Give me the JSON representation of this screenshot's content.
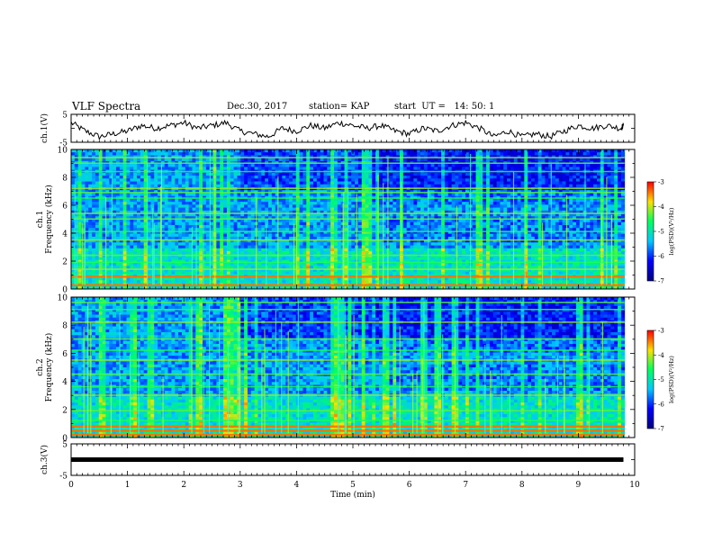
{
  "header": {
    "title": "VLF Spectra",
    "date": "Dec.30, 2017",
    "station": "station= KAP",
    "start": "start  UT =   14: 50: 1"
  },
  "chart_data": [
    {
      "type": "line",
      "panel": "ch1-waveform",
      "ylabel": "ch.1(V)",
      "ylim": [
        -5,
        5
      ],
      "yticks": [
        "5",
        "-5"
      ],
      "xlim": [
        0,
        10
      ],
      "x": [
        0,
        0.25,
        0.5,
        0.75,
        1,
        1.25,
        1.5,
        1.75,
        2,
        2.25,
        2.5,
        2.75,
        3,
        3.25,
        3.5,
        3.75,
        4,
        4.25,
        4.5,
        4.75,
        5,
        5.25,
        5.5,
        5.75,
        6,
        6.25,
        6.5,
        6.75,
        7,
        7.25,
        7.5,
        7.75,
        8,
        8.25,
        8.5,
        8.75,
        9,
        9.25,
        9.5,
        9.75,
        9.8
      ],
      "values": [
        2,
        -1,
        -3,
        -2,
        -1,
        1,
        0,
        1,
        2,
        0,
        1,
        2,
        -1,
        -2,
        -3,
        0,
        -1,
        1,
        0,
        2,
        1,
        0,
        1,
        -1,
        -2,
        0,
        -1,
        1,
        2,
        0,
        -3,
        -1,
        -3,
        -2,
        -3,
        -1,
        1,
        0,
        1,
        0,
        1
      ]
    },
    {
      "type": "heatmap",
      "panel": "ch1-spectrogram",
      "ylabel": "ch.1\nFrequency (kHz)",
      "ylim": [
        0,
        10
      ],
      "yticks": [
        "0",
        "2",
        "4",
        "6",
        "8",
        "10"
      ],
      "xlim": [
        0,
        10
      ],
      "colorbar": {
        "label": "log(PSD)(V²/Hz)",
        "range": [
          -7,
          -3
        ],
        "ticks": [
          "-3",
          "-4",
          "-5",
          "-6",
          "-7"
        ]
      },
      "bands_khz": [
        0.3,
        0.9,
        1.4,
        1.9,
        2.4,
        3.5,
        4.1,
        5.0,
        5.4,
        6.5,
        6.9,
        7.2,
        8.4,
        9.0,
        9.4
      ]
    },
    {
      "type": "heatmap",
      "panel": "ch2-spectrogram",
      "ylabel": "ch.2\nFrequency (kHz)",
      "ylim": [
        0,
        10
      ],
      "yticks": [
        "0",
        "2",
        "4",
        "6",
        "8",
        "10"
      ],
      "xlim": [
        0,
        10
      ],
      "colorbar": {
        "label": "log(PSD)(V²/Hz)",
        "range": [
          -7,
          -3
        ],
        "ticks": [
          "-3",
          "-4",
          "-5",
          "-6",
          "-7"
        ]
      },
      "bands_khz": [
        0.2,
        0.5,
        0.8,
        1.2,
        1.9,
        3.0,
        3.6,
        4.5,
        5.5,
        6.2,
        7.0,
        8.2,
        9.1,
        9.6
      ]
    },
    {
      "type": "line",
      "panel": "ch3-waveform",
      "ylabel": "ch.3(V)",
      "ylim": [
        -5,
        5
      ],
      "yticks": [
        "5",
        "-5"
      ],
      "xlim": [
        0,
        10
      ],
      "x": [
        0,
        9.8
      ],
      "values": [
        0,
        0
      ]
    }
  ],
  "xaxis": {
    "label": "Time  (min)",
    "ticks": [
      "0",
      "1",
      "2",
      "3",
      "4",
      "5",
      "6",
      "7",
      "8",
      "9",
      "10"
    ]
  }
}
